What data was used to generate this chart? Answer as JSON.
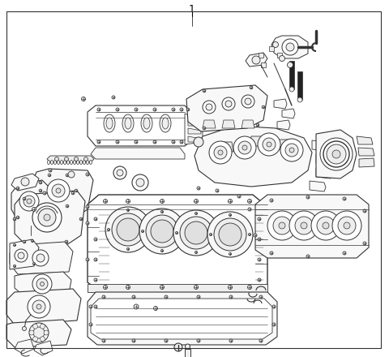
{
  "title": "1",
  "background_color": "#ffffff",
  "border_color": "#333333",
  "line_color": "#333333",
  "figure_width": 4.8,
  "figure_height": 4.4,
  "dpi": 100,
  "border_linewidth": 0.8,
  "title_fontsize": 9,
  "fill_light": "#f8f8f8",
  "fill_mid": "#eeeeee",
  "fill_dark": "#e0e0e0",
  "fill_white": "#ffffff"
}
